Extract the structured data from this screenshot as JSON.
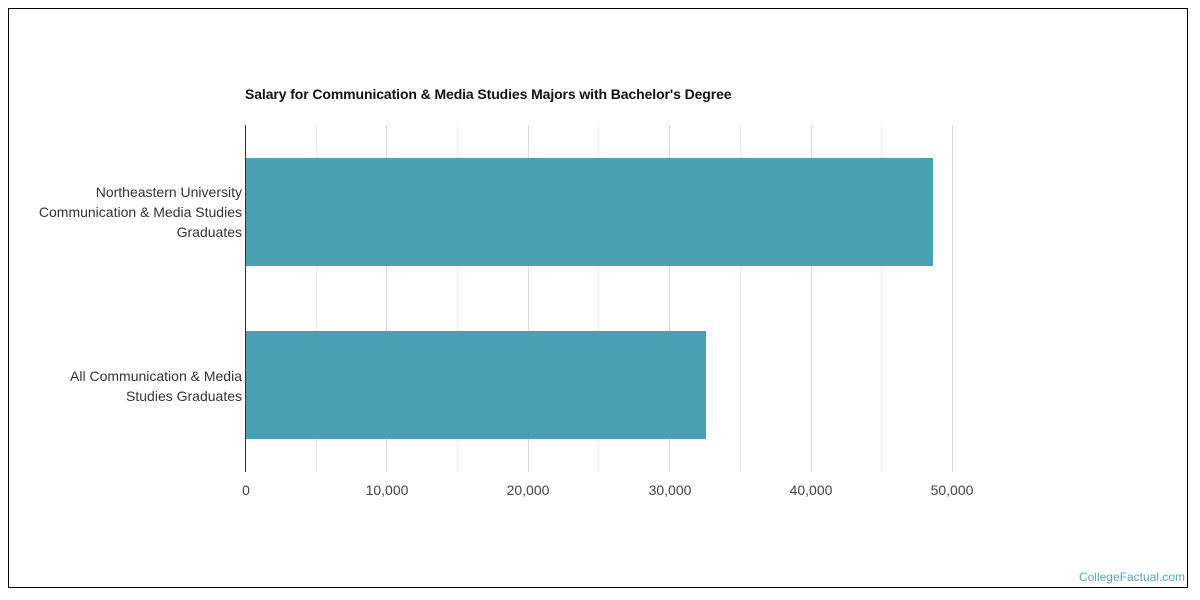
{
  "chart_data": {
    "type": "bar",
    "orientation": "horizontal",
    "title": "Salary for Communication & Media Studies Majors with Bachelor's Degree",
    "categories": [
      "Northeastern University Communication & Media Studies Graduates",
      "All Communication & Media Studies Graduates"
    ],
    "category_label_lines": [
      [
        "Northeastern University",
        "Communication & Media Studies",
        "Graduates"
      ],
      [
        "All Communication & Media",
        "Studies Graduates"
      ]
    ],
    "values": [
      48600,
      32500
    ],
    "xlabel": "",
    "ylabel": "",
    "xlim": [
      0,
      50000
    ],
    "x_ticks": [
      "0",
      "10,000",
      "20,000",
      "30,000",
      "40,000",
      "50,000"
    ],
    "grid": true,
    "legend": null,
    "bar_color": "#4aa0b2"
  },
  "watermark": "CollegeFactual.com"
}
